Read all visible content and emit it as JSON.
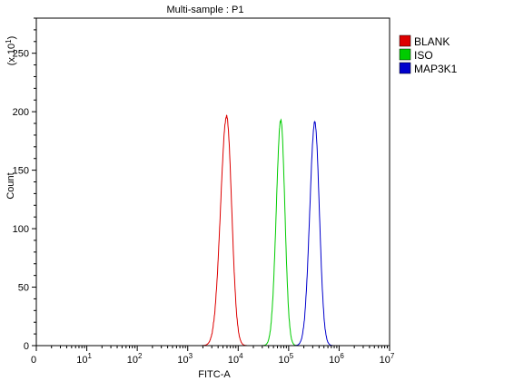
{
  "chart_data": {
    "type": "line",
    "title": "Multi-sample : P1",
    "xlabel": "FITC-A",
    "ylabel": "Count",
    "y_scale_note": "(x 10",
    "y_scale_exponent": "1",
    "y_scale_close": ")",
    "xscale": "log",
    "xlim": [
      0,
      10000000
    ],
    "ylim": [
      0,
      280
    ],
    "y_ticks": [
      0,
      50,
      100,
      150,
      200,
      250
    ],
    "y_tick_labels": [
      "0",
      "50",
      "100",
      "150",
      "200",
      "250"
    ],
    "x_ticks": [
      {
        "value": 0,
        "base": "0",
        "exp": ""
      },
      {
        "value": 10,
        "base": "10",
        "exp": "1"
      },
      {
        "value": 100,
        "base": "10",
        "exp": "2"
      },
      {
        "value": 1000,
        "base": "10",
        "exp": "3"
      },
      {
        "value": 10000,
        "base": "10",
        "exp": "4"
      },
      {
        "value": 100000,
        "base": "10",
        "exp": "5"
      },
      {
        "value": 1000000,
        "base": "10",
        "exp": "6"
      },
      {
        "value": 10000000,
        "base": "10",
        "exp": "7"
      }
    ],
    "grid": false,
    "legend_position": "top-right",
    "series": [
      {
        "name": "BLANK",
        "color": "#dd0000",
        "peak_x": 5900,
        "peak_y": 196,
        "sigma_left": 0.12,
        "sigma_right": 0.1,
        "x_min": 1900,
        "x_max": 32000
      },
      {
        "name": "ISO",
        "color": "#00cc00",
        "peak_x": 70000,
        "peak_y": 193,
        "sigma_left": 0.09,
        "sigma_right": 0.08,
        "x_min": 22000,
        "x_max": 330000
      },
      {
        "name": "MAP3K1",
        "color": "#0000cc",
        "peak_x": 330000,
        "peak_y": 191,
        "sigma_left": 0.1,
        "sigma_right": 0.09,
        "x_min": 110000,
        "x_max": 2200000
      }
    ]
  }
}
